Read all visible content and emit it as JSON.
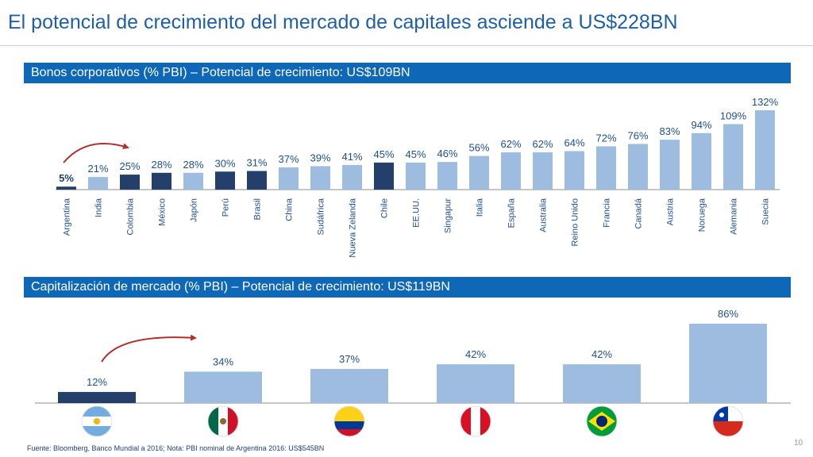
{
  "title": "El potencial de crecimiento del mercado de capitales asciende a US$228BN",
  "footnote": "Fuente: Bloomberg, Banco Mundial a 2016; Nota: PBI nominal de Argentina 2016: US$545BN",
  "page_number": "10",
  "colors": {
    "highlight": "#233f6a",
    "bar": "#9dbce0",
    "banner": "#0e68b7",
    "arrow": "#b0302f"
  },
  "chart_data": [
    {
      "type": "bar",
      "title": "Bonos corporativos (% PBI) – Potencial de crecimiento: US$109BN",
      "categories": [
        "Argentina",
        "India",
        "Colombia",
        "México",
        "Japón",
        "Perú",
        "Brasil",
        "China",
        "Sudáfrica",
        "Nueva Zelanda",
        "Chile",
        "EE.UU.",
        "Singapur",
        "Italia",
        "España",
        "Australia",
        "Reino Unido",
        "Francia",
        "Canadá",
        "Austria",
        "Noruega",
        "Alemania",
        "Suecia"
      ],
      "values": [
        5,
        21,
        25,
        28,
        28,
        30,
        31,
        37,
        39,
        41,
        45,
        45,
        46,
        56,
        62,
        62,
        64,
        72,
        76,
        83,
        94,
        109,
        132
      ],
      "value_labels": [
        "5%",
        "21%",
        "25%",
        "28%",
        "28%",
        "30%",
        "31%",
        "37%",
        "39%",
        "41%",
        "45%",
        "45%",
        "46%",
        "56%",
        "62%",
        "62%",
        "64%",
        "72%",
        "76%",
        "83%",
        "94%",
        "109%",
        "132%"
      ],
      "highlighted": [
        "Argentina",
        "Colombia",
        "México",
        "Perú",
        "Brasil",
        "Chile"
      ],
      "ylim": [
        0,
        132
      ],
      "grid": false
    },
    {
      "type": "bar",
      "title": "Capitalización de mercado (% PBI) – Potencial de crecimiento: US$119BN",
      "categories": [
        "Argentina",
        "México",
        "Colombia",
        "Perú",
        "Brasil",
        "Chile"
      ],
      "category_icons": [
        "argentina-flag-icon",
        "mexico-flag-icon",
        "colombia-flag-icon",
        "peru-flag-icon",
        "brazil-flag-icon",
        "chile-flag-icon"
      ],
      "values": [
        12,
        34,
        37,
        42,
        42,
        86
      ],
      "value_labels": [
        "12%",
        "34%",
        "37%",
        "42%",
        "42%",
        "86%"
      ],
      "highlighted": [
        "Argentina"
      ],
      "ylim": [
        0,
        86
      ],
      "grid": false
    }
  ]
}
